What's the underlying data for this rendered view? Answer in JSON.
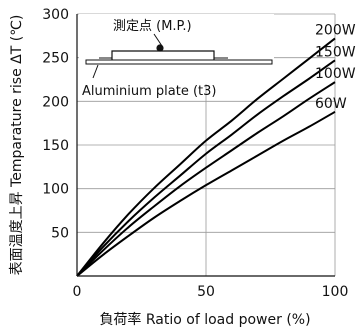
{
  "chart_data": {
    "type": "line",
    "title": "",
    "xlabel": "負荷率  Ratio of load power  (%)",
    "ylabel": "表面温度上昇  Temparature rise  ΔT (℃)",
    "xlim": [
      0,
      100
    ],
    "ylim": [
      0,
      300
    ],
    "x_ticks": [
      0,
      50,
      100
    ],
    "y_ticks": [
      50,
      100,
      150,
      200,
      250,
      300
    ],
    "grid": true,
    "x": [
      0,
      10,
      20,
      30,
      40,
      50,
      60,
      70,
      80,
      90,
      100
    ],
    "series": [
      {
        "name": "200W",
        "values": [
          0,
          37,
          71,
          101,
          128,
          155,
          178,
          203,
          226,
          249,
          272
        ]
      },
      {
        "name": "150W",
        "values": [
          0,
          33,
          63,
          90,
          115,
          140,
          162,
          185,
          206,
          226,
          247
        ]
      },
      {
        "name": "100W",
        "values": [
          0,
          29,
          56,
          80,
          103,
          124,
          144,
          164,
          183,
          203,
          222
        ]
      },
      {
        "name": "60W",
        "values": [
          0,
          24,
          46,
          67,
          86,
          104,
          121,
          138,
          155,
          171,
          188
        ]
      }
    ],
    "annotations": {
      "measurement_point": "測定点 (M.P.)",
      "plate": "Aluminium plate (t3)"
    }
  }
}
